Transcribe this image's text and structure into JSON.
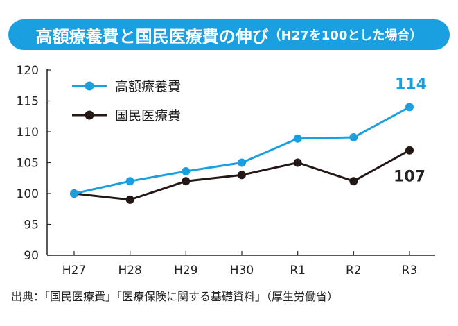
{
  "title": {
    "main": "高額療養費と国民医療費の伸び",
    "sub": "（H27を100とした場合）"
  },
  "source": "出典：「国民医療費」「医療保険に関する基礎資料」（厚生労働省）",
  "colors": {
    "title_bg": "#1a9fe0",
    "series_blue": "#1a9fe0",
    "series_black": "#231815",
    "axis": "#222222"
  },
  "chart_data": {
    "type": "line",
    "title": "高額療養費と国民医療費の伸び（H27を100とした場合）",
    "categories": [
      "H27",
      "H28",
      "H29",
      "H30",
      "R1",
      "R2",
      "R3"
    ],
    "ylim": [
      90,
      120
    ],
    "yticks": [
      90,
      95,
      100,
      105,
      110,
      115,
      120
    ],
    "grid": false,
    "legend": "top-left",
    "series": [
      {
        "name": "高額療養費",
        "color": "#1a9fe0",
        "values": [
          100,
          102,
          103.6,
          105,
          108.9,
          109.1,
          114
        ],
        "end_label": "114"
      },
      {
        "name": "国民医療費",
        "color": "#231815",
        "values": [
          100,
          99,
          102,
          103,
          105,
          102,
          107
        ],
        "end_label": "107"
      }
    ]
  }
}
